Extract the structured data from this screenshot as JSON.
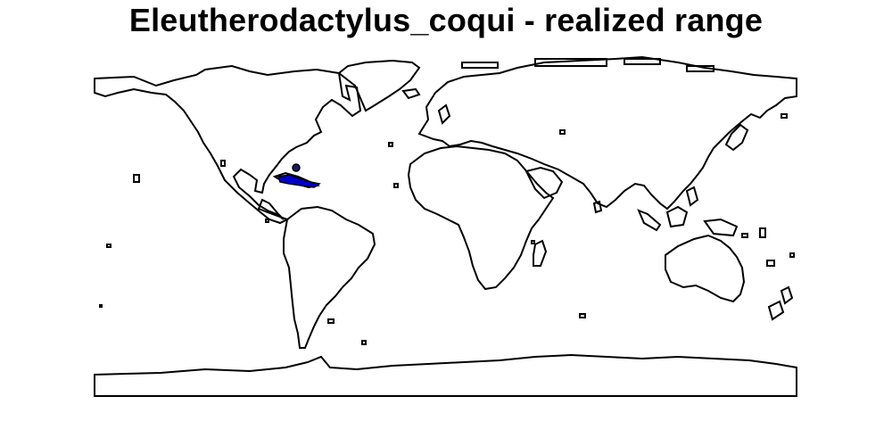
{
  "map": {
    "title": "Eleutherodactylus_coqui - realized range",
    "species": "Eleutherodactylus_coqui",
    "projection": "equirectangular world outline",
    "range_color": "#0000cc",
    "outline_color": "#000000",
    "background_color": "#ffffff",
    "range_region": "Caribbean / Greater Antilles"
  }
}
